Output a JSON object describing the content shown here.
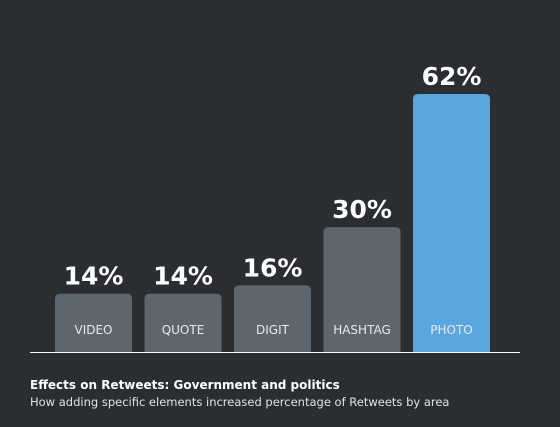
{
  "chart_data": {
    "type": "bar",
    "title": "Effects on Retweets: Government and politics",
    "subtitle": "How adding specific elements increased percentage of Retweets by area",
    "categories": [
      "VIDEO",
      "QUOTE",
      "DIGIT",
      "HASHTAG",
      "PHOTO"
    ],
    "values": [
      14,
      14,
      16,
      30,
      62
    ],
    "value_labels": [
      "14%",
      "14%",
      "16%",
      "30%",
      "62%"
    ],
    "colors": [
      "#5c666c",
      "#5c666c",
      "#5c666c",
      "#5c666c",
      "#5aa6de"
    ]
  }
}
